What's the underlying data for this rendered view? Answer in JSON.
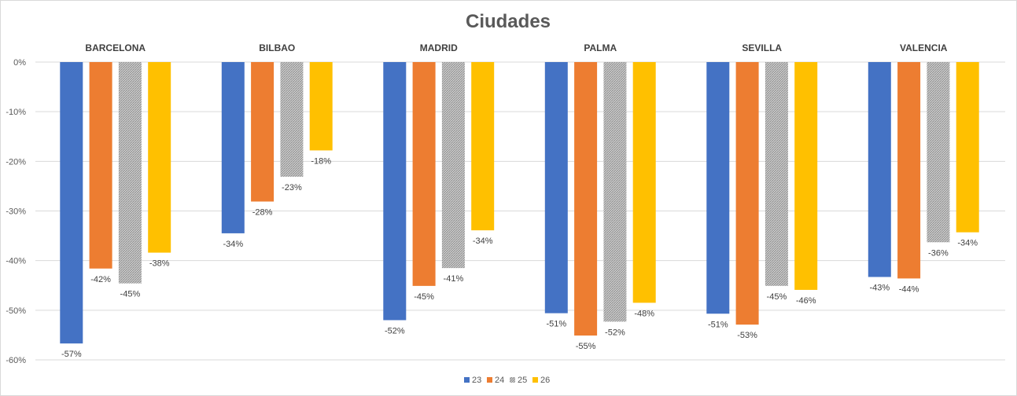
{
  "chart_data": {
    "type": "bar",
    "title": "Ciudades",
    "categories": [
      "BARCELONA",
      "BILBAO",
      "MADRID",
      "PALMA",
      "SEVILLA",
      "VALENCIA"
    ],
    "ylim": [
      -60,
      0
    ],
    "yticks": [
      0,
      -10,
      -20,
      -30,
      -40,
      -50,
      -60
    ],
    "ytick_labels": [
      "0%",
      "-10%",
      "-20%",
      "-30%",
      "-40%",
      "-50%",
      "-60%"
    ],
    "grid": true,
    "legend_position": "bottom-center",
    "series": [
      {
        "name": "23",
        "color": "#4472C4",
        "pattern": "solid",
        "values": [
          -56.7,
          -34.5,
          -52.0,
          -50.6,
          -50.7,
          -43.3
        ],
        "labels": [
          "-57%",
          "-34%",
          "-52%",
          "-51%",
          "-51%",
          "-43%"
        ]
      },
      {
        "name": "24",
        "color": "#ED7D31",
        "pattern": "solid",
        "values": [
          -41.6,
          -28.1,
          -45.1,
          -55.1,
          -52.9,
          -43.6
        ],
        "labels": [
          "-42%",
          "-28%",
          "-45%",
          "-55%",
          "-53%",
          "-44%"
        ]
      },
      {
        "name": "25",
        "color": "#A5A5A5",
        "pattern": "hatched",
        "values": [
          -44.6,
          -23.1,
          -41.5,
          -52.3,
          -45.1,
          -36.3
        ],
        "labels": [
          "-45%",
          "-23%",
          "-41%",
          "-52%",
          "-45%",
          "-36%"
        ]
      },
      {
        "name": "26",
        "color": "#FFC000",
        "pattern": "solid",
        "values": [
          -38.4,
          -17.8,
          -33.9,
          -48.5,
          -45.9,
          -34.3
        ],
        "labels": [
          "-38%",
          "-18%",
          "-34%",
          "-48%",
          "-46%",
          "-34%"
        ]
      }
    ]
  }
}
